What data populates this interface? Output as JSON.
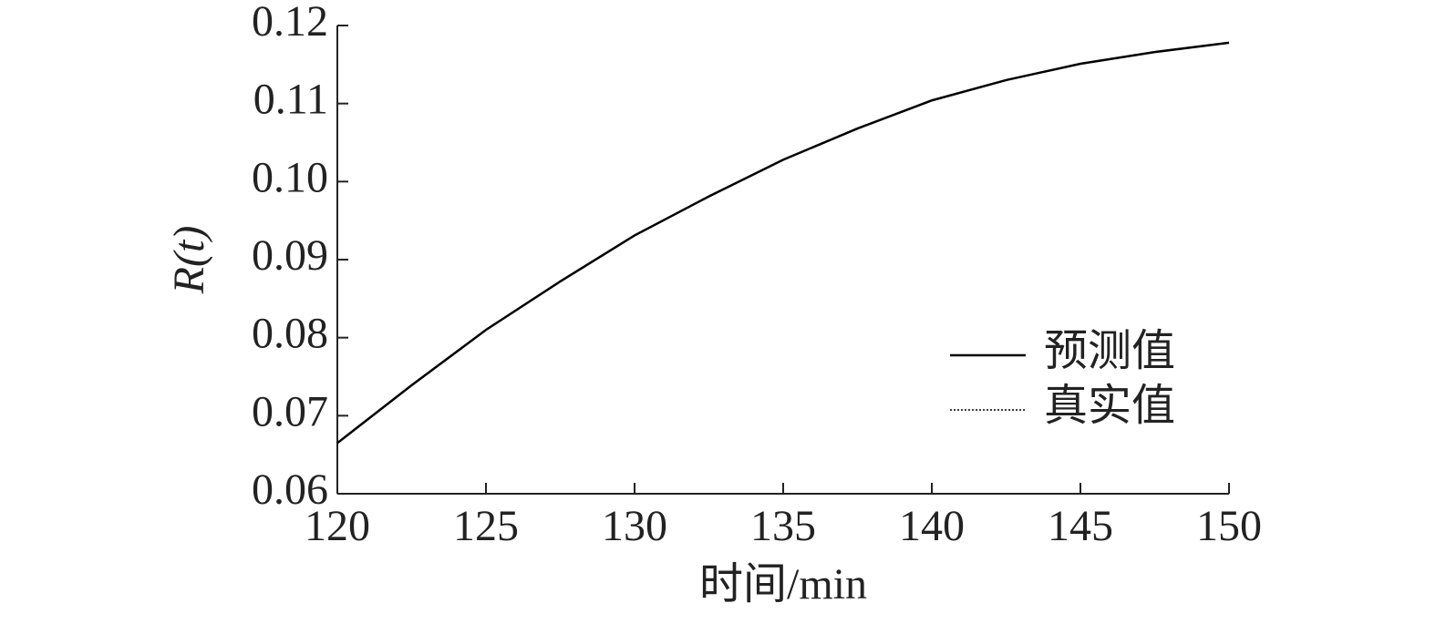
{
  "chart_data": {
    "type": "line",
    "x_label": "时间/min",
    "y_label": "R(t)",
    "x": [
      120,
      122.5,
      125,
      127.5,
      130,
      132.5,
      135,
      137.5,
      140,
      142.5,
      145,
      147.5,
      150
    ],
    "series": [
      {
        "name": "预测值",
        "color": "#000000",
        "style": "solid",
        "values": [
          0.0665,
          0.0739,
          0.081,
          0.0872,
          0.0931,
          0.0981,
          0.1028,
          0.1068,
          0.1104,
          0.113,
          0.1151,
          0.1166,
          0.1178
        ]
      },
      {
        "name": "真实值",
        "color": "#000000",
        "style": "dotted",
        "values": [
          0.0665,
          0.0739,
          0.081,
          0.0872,
          0.0931,
          0.0981,
          0.1028,
          0.1068,
          0.1104,
          0.113,
          0.1151,
          0.1166,
          0.1178
        ]
      }
    ],
    "xlim": [
      120,
      150
    ],
    "xticks": [
      120,
      125,
      130,
      135,
      140,
      145,
      150
    ],
    "ylim": [
      0.06,
      0.12
    ],
    "yticks": [
      0.06,
      0.07,
      0.08,
      0.09,
      {
        "value": 0.1,
        "label": "0.10"
      },
      0.11,
      0.12
    ],
    "legend": "right",
    "grid": false
  }
}
